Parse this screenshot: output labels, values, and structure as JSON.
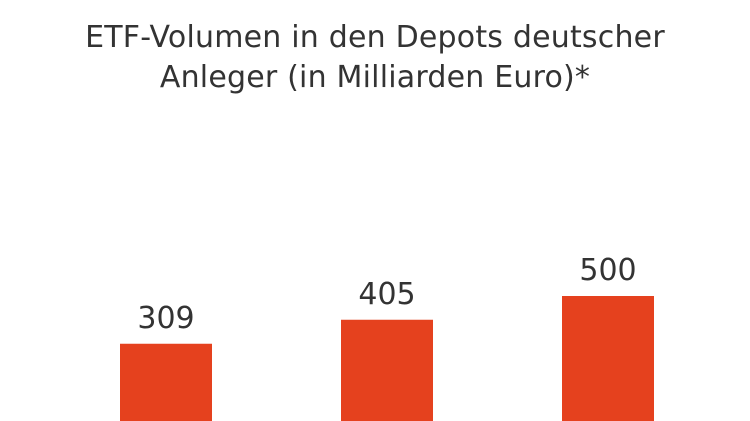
{
  "chart_data": {
    "type": "bar",
    "title_lines": [
      "ETF-Volumen in den Depots deutscher",
      "Anleger (in Milliarden Euro)*"
    ],
    "categories": [
      "",
      "",
      ""
    ],
    "values": [
      309,
      405,
      500
    ],
    "data_labels": [
      "309",
      "405",
      "500"
    ],
    "xlabel": "",
    "ylabel": "",
    "ylim": [
      0,
      600
    ],
    "grid": false,
    "legend": "none",
    "bar_color": "#E5411E"
  }
}
